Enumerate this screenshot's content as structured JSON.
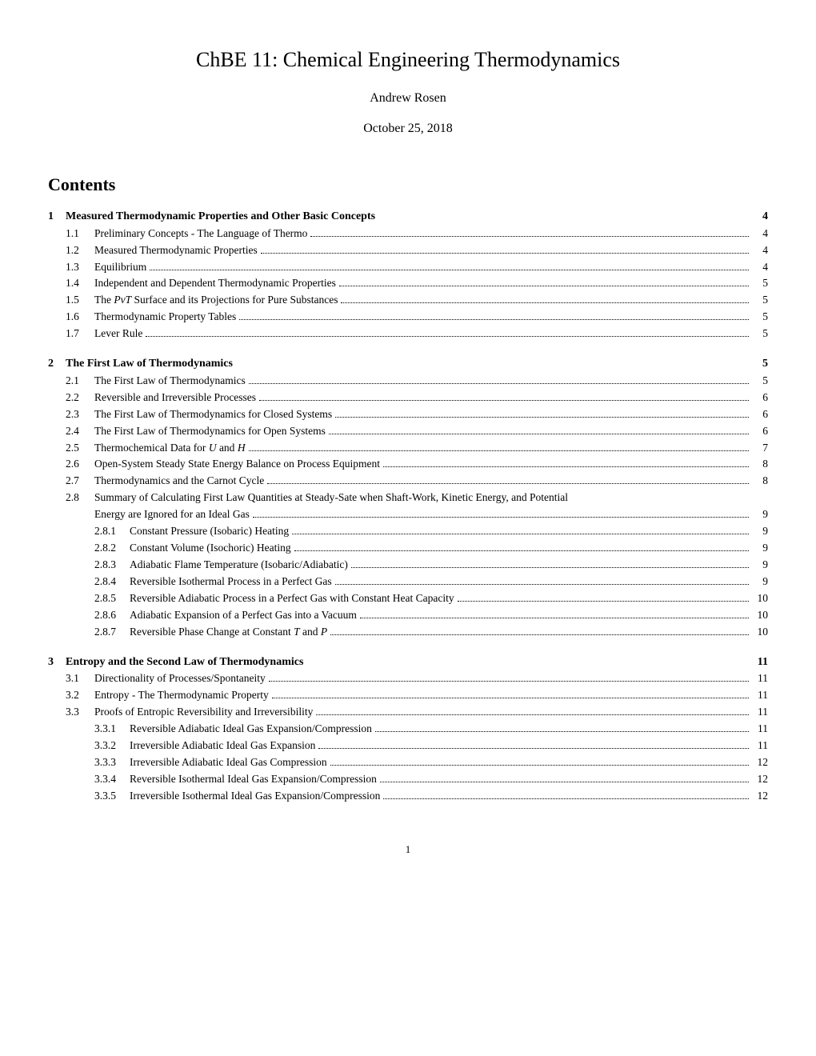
{
  "title": "ChBE 11: Chemical Engineering Thermodynamics",
  "author": "Andrew Rosen",
  "date": "October 25, 2018",
  "contents_heading": "Contents",
  "page_number": "1",
  "sections": [
    {
      "num": "1",
      "title": "Measured Thermodynamic Properties and Other Basic Concepts",
      "page": "4",
      "subs": [
        {
          "num": "1.1",
          "title": "Preliminary Concepts - The Language of Thermo",
          "page": "4"
        },
        {
          "num": "1.2",
          "title": "Measured Thermodynamic Properties",
          "page": "4"
        },
        {
          "num": "1.3",
          "title": "Equilibrium",
          "page": "4"
        },
        {
          "num": "1.4",
          "title": "Independent and Dependent Thermodynamic Properties",
          "page": "5"
        },
        {
          "num": "1.5",
          "title_html": "The <span class=\"italic\">PvT</span> Surface and its Projections for Pure Substances",
          "page": "5"
        },
        {
          "num": "1.6",
          "title": "Thermodynamic Property Tables",
          "page": "5"
        },
        {
          "num": "1.7",
          "title": "Lever Rule",
          "page": "5"
        }
      ]
    },
    {
      "num": "2",
      "title": "The First Law of Thermodynamics",
      "page": "5",
      "subs": [
        {
          "num": "2.1",
          "title": "The First Law of Thermodynamics",
          "page": "5"
        },
        {
          "num": "2.2",
          "title": "Reversible and Irreversible Processes",
          "page": "6"
        },
        {
          "num": "2.3",
          "title": "The First Law of Thermodynamics for Closed Systems",
          "page": "6"
        },
        {
          "num": "2.4",
          "title": "The First Law of Thermodynamics for Open Systems",
          "page": "6"
        },
        {
          "num": "2.5",
          "title_html": "Thermochemical Data for <span class=\"italic\">U</span> and <span class=\"italic\">H</span>",
          "page": "7"
        },
        {
          "num": "2.6",
          "title": "Open-System Steady State Energy Balance on Process Equipment",
          "page": "8"
        },
        {
          "num": "2.7",
          "title": "Thermodynamics and the Carnot Cycle",
          "page": "8"
        },
        {
          "num": "2.8",
          "title": "Summary of Calculating First Law Quantities at Steady-Sate when Shaft-Work, Kinetic Energy, and Potential Energy are Ignored for an Ideal Gas",
          "page": "9",
          "subsubs": [
            {
              "num": "2.8.1",
              "title": "Constant Pressure (Isobaric) Heating",
              "page": "9"
            },
            {
              "num": "2.8.2",
              "title": "Constant Volume (Isochoric) Heating",
              "page": "9"
            },
            {
              "num": "2.8.3",
              "title": "Adiabatic Flame Temperature (Isobaric/Adiabatic)",
              "page": "9"
            },
            {
              "num": "2.8.4",
              "title": "Reversible Isothermal Process in a Perfect Gas",
              "page": "9"
            },
            {
              "num": "2.8.5",
              "title": "Reversible Adiabatic Process in a Perfect Gas with Constant Heat Capacity",
              "page": "10"
            },
            {
              "num": "2.8.6",
              "title": "Adiabatic Expansion of a Perfect Gas into a Vacuum",
              "page": "10"
            },
            {
              "num": "2.8.7",
              "title_html": "Reversible Phase Change at Constant <span class=\"italic\">T</span> and <span class=\"italic\">P</span>",
              "page": "10"
            }
          ]
        }
      ]
    },
    {
      "num": "3",
      "title": "Entropy and the Second Law of Thermodynamics",
      "page": "11",
      "subs": [
        {
          "num": "3.1",
          "title": "Directionality of Processes/Spontaneity",
          "page": "11"
        },
        {
          "num": "3.2",
          "title": "Entropy - The Thermodynamic Property",
          "page": "11"
        },
        {
          "num": "3.3",
          "title": "Proofs of Entropic Reversibility and Irreversibility",
          "page": "11",
          "subsubs": [
            {
              "num": "3.3.1",
              "title": "Reversible Adiabatic Ideal Gas Expansion/Compression",
              "page": "11"
            },
            {
              "num": "3.3.2",
              "title": "Irreversible Adiabatic Ideal Gas Expansion",
              "page": "11"
            },
            {
              "num": "3.3.3",
              "title": "Irreversible Adiabatic Ideal Gas Compression",
              "page": "12"
            },
            {
              "num": "3.3.4",
              "title": "Reversible Isothermal Ideal Gas Expansion/Compression",
              "page": "12"
            },
            {
              "num": "3.3.5",
              "title": "Irreversible Isothermal Ideal Gas Expansion/Compression",
              "page": "12"
            }
          ]
        }
      ]
    }
  ]
}
